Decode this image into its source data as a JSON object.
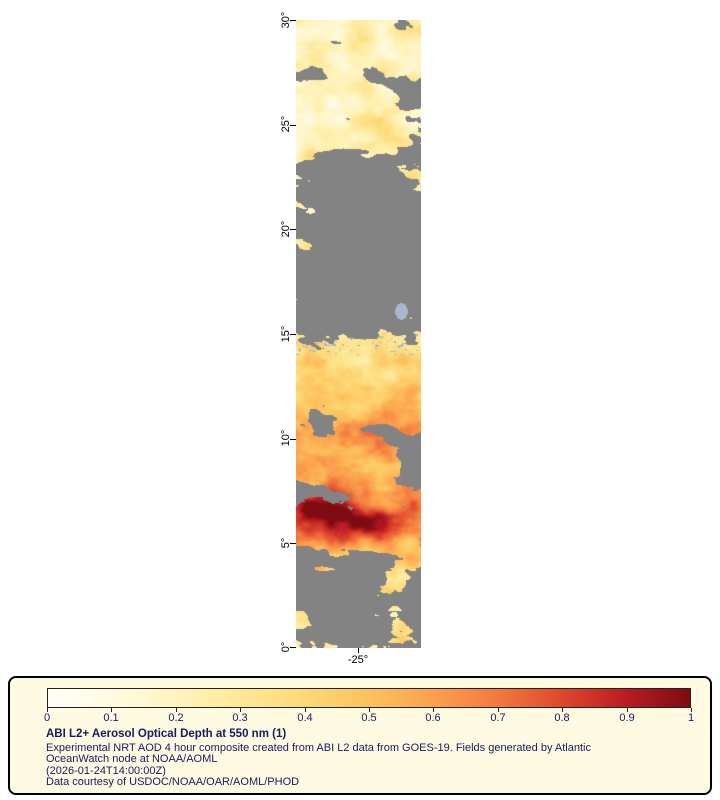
{
  "figure": {
    "y_ticks": [
      "30°",
      "25°",
      "20°",
      "15°",
      "10°",
      "5°",
      "0°"
    ],
    "x_tick": "-25°"
  },
  "legend": {
    "colorbar_ticks": [
      "0",
      "0.1",
      "0.2",
      "0.3",
      "0.4",
      "0.5",
      "0.6",
      "0.7",
      "0.8",
      "0.9",
      "1"
    ],
    "title": "ABI L2+ Aerosol Optical Depth at 550 nm (1)",
    "description_line1": "Experimental NRT AOD 4 hour composite created from ABI L2 data from GOES-19. Fields generated by Atlantic",
    "description_line2": "OceanWatch node at NOAA/AOML",
    "timestamp": "(2026-01-24T14:00:00Z)",
    "credit": "Data courtesy of USDOC/NOAA/OAR/AOML/PHOD"
  },
  "colors": {
    "nodata_gray": "#838383",
    "cloud_blue": "#A8B8CC",
    "legend_bg": "#FFFBE3",
    "text_navy": "#191960",
    "colorbar_stops": [
      "#FFFFF8",
      "#FFFBE2",
      "#FFF4BE",
      "#FEE998",
      "#FDD877",
      "#FDC25E",
      "#FCA14E",
      "#F3793E",
      "#DE482D",
      "#BA1C23",
      "#7E0B12"
    ]
  }
}
